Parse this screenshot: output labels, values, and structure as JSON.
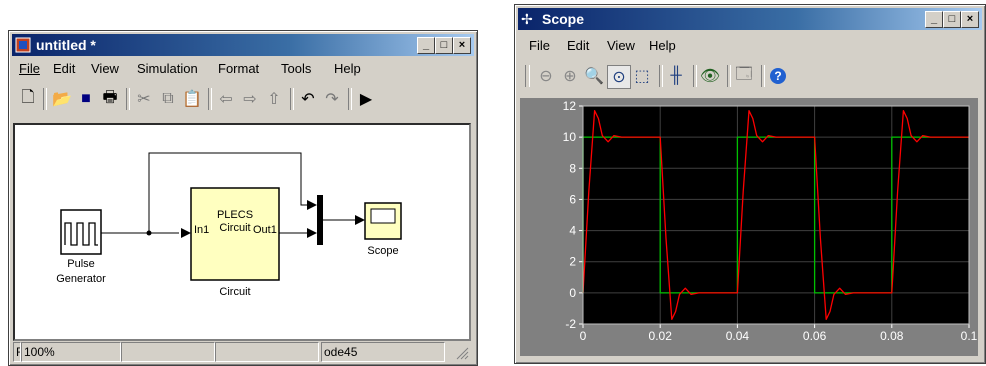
{
  "simulink": {
    "title": "untitled *",
    "menu": [
      "File",
      "Edit",
      "View",
      "Simulation",
      "Format",
      "Tools",
      "Help"
    ],
    "blocks": {
      "pulse_label": "Pulse\nGenerator",
      "plecs_label": "PLECS\nCircuit",
      "plecs_in": "In1",
      "plecs_out": "Out1",
      "circuit_label": "Circuit",
      "scope_label": "Scope"
    },
    "status": [
      "F",
      "100%",
      "",
      "",
      "ode45"
    ]
  },
  "scope": {
    "title": "Scope",
    "menu": [
      "File",
      "Edit",
      "View",
      "Help"
    ]
  },
  "chart_data": {
    "type": "line",
    "title": "",
    "xlabel": "",
    "ylabel": "",
    "xlim": [
      0,
      0.1
    ],
    "ylim": [
      -2,
      12
    ],
    "x_ticks": [
      "0",
      "0.02",
      "0.04",
      "0.06",
      "0.08",
      "0.1"
    ],
    "y_ticks": [
      "-2",
      "0",
      "2",
      "4",
      "6",
      "8",
      "10",
      "12"
    ],
    "grid": true,
    "background": "#000000",
    "series": [
      {
        "color": "#00c000",
        "x": [
          0,
          0,
          0.02,
          0.02,
          0.04,
          0.04,
          0.06,
          0.06,
          0.08,
          0.08,
          0.1
        ],
        "y": [
          0,
          10,
          10,
          0,
          0,
          10,
          10,
          0,
          0,
          10,
          10
        ]
      },
      {
        "color": "#ff0000",
        "x": [
          0,
          0.0015,
          0.003,
          0.004,
          0.005,
          0.0065,
          0.008,
          0.01,
          0.02,
          0.0215,
          0.023,
          0.024,
          0.025,
          0.0265,
          0.028,
          0.03,
          0.04,
          0.0415,
          0.043,
          0.044,
          0.045,
          0.0465,
          0.048,
          0.05,
          0.06,
          0.0615,
          0.063,
          0.064,
          0.065,
          0.0665,
          0.068,
          0.07,
          0.08,
          0.0815,
          0.083,
          0.084,
          0.085,
          0.0865,
          0.088,
          0.09,
          0.1
        ],
        "y": [
          0,
          6.5,
          11.7,
          11.2,
          10.1,
          9.7,
          10.1,
          10,
          10,
          3.5,
          -1.7,
          -1.2,
          -0.1,
          0.3,
          -0.1,
          0,
          0,
          6.5,
          11.7,
          11.2,
          10.1,
          9.7,
          10.1,
          10,
          10,
          3.5,
          -1.7,
          -1.2,
          -0.1,
          0.3,
          -0.1,
          0,
          0,
          6.5,
          11.7,
          11.2,
          10.1,
          9.7,
          10.1,
          10,
          10
        ]
      }
    ]
  }
}
